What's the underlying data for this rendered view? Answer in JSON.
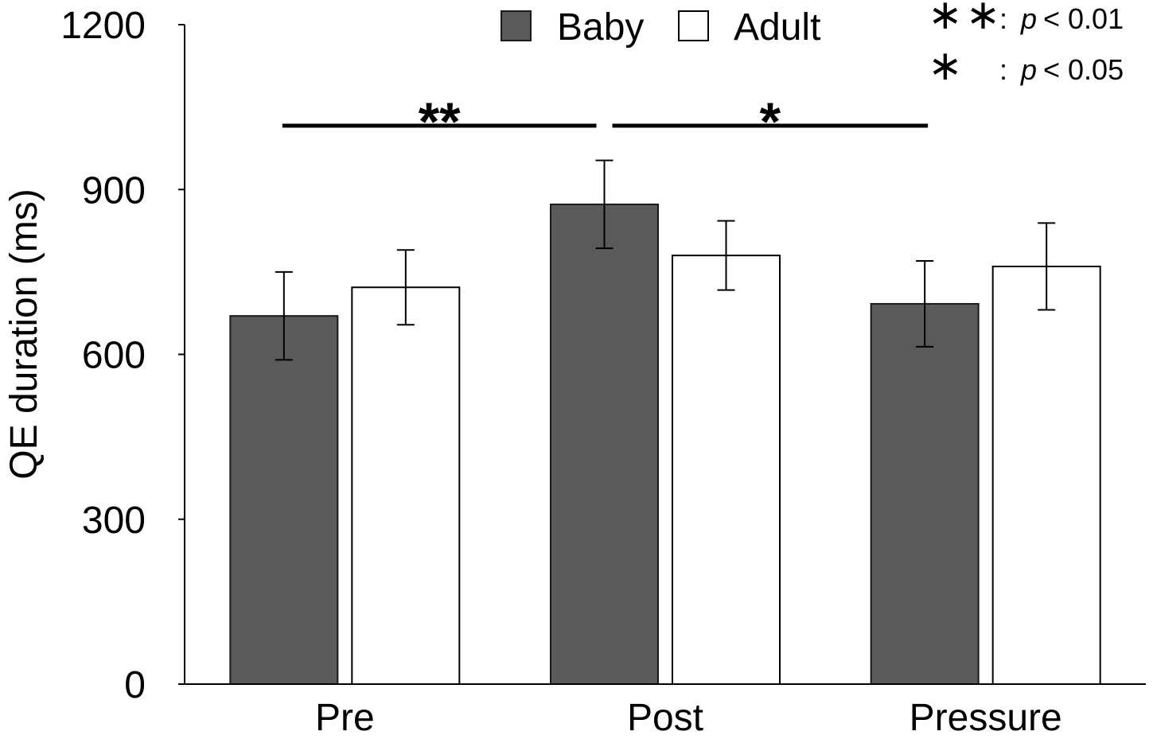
{
  "chart_data": {
    "type": "bar",
    "categories": [
      "Pre",
      "Post",
      "Pressure"
    ],
    "series": [
      {
        "name": "Baby",
        "values": [
          670,
          873,
          692
        ],
        "errors": [
          80,
          80,
          78
        ],
        "color": "#5a5a5a"
      },
      {
        "name": "Adult",
        "values": [
          722,
          780,
          760
        ],
        "errors": [
          68,
          63,
          79
        ],
        "color": "#ffffff"
      }
    ],
    "ylabel": "QE duration (ms)",
    "ylim": [
      0,
      1200
    ],
    "yticks": [
      0,
      300,
      600,
      900,
      1200
    ],
    "legend_position": "top-center",
    "significance": [
      {
        "series": "Baby",
        "from": 0,
        "to": 1,
        "label": "**"
      },
      {
        "series": "Baby",
        "from": 1,
        "to": 2,
        "label": "*"
      }
    ],
    "notes": [
      {
        "stars": "∗∗",
        "sep": ":",
        "p": "p",
        "threshold": "< 0.01"
      },
      {
        "stars": "∗",
        "sep": ":",
        "p": "p",
        "threshold": "< 0.05"
      }
    ]
  }
}
